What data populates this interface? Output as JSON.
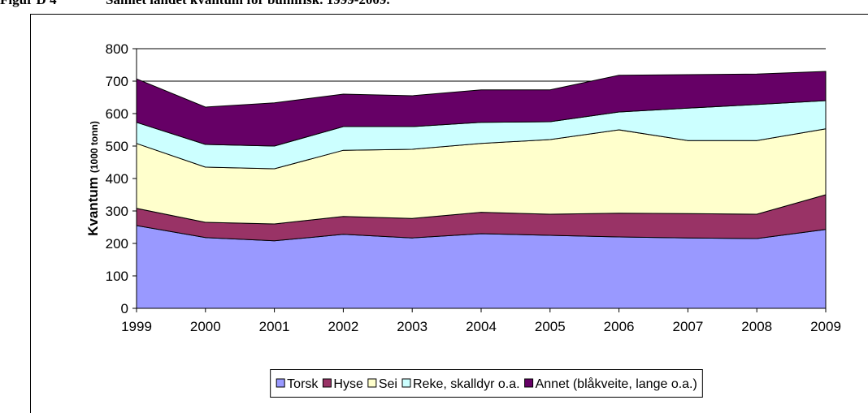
{
  "figure_label": "Figur D 4",
  "chart_data": {
    "type": "stacked_area",
    "title": "Samlet landet kvantum for bunnfisk. 1999-2009.",
    "y_label": "Kvantum",
    "y_label_unit": "(1000 tonn)",
    "categories": [
      "1999",
      "2000",
      "2001",
      "2002",
      "2003",
      "2004",
      "2005",
      "2006",
      "2007",
      "2008",
      "2009"
    ],
    "series": [
      {
        "name": "Torsk",
        "color": "#9999ff",
        "values": [
          255,
          218,
          208,
          228,
          217,
          230,
          225,
          220,
          217,
          215,
          243
        ]
      },
      {
        "name": "Hyse",
        "color": "#993366",
        "values": [
          53,
          47,
          52,
          55,
          60,
          66,
          65,
          73,
          75,
          75,
          107
        ]
      },
      {
        "name": "Sei",
        "color": "#ffffcc",
        "values": [
          200,
          170,
          170,
          204,
          213,
          212,
          230,
          257,
          225,
          227,
          203
        ]
      },
      {
        "name": "Reke, skalldyr o.a.",
        "color": "#ccffff",
        "values": [
          65,
          70,
          70,
          73,
          70,
          65,
          55,
          55,
          100,
          111,
          87
        ]
      },
      {
        "name": "Annet (blåkveite, lange o.a.)",
        "color": "#660066",
        "values": [
          134,
          115,
          133,
          100,
          95,
          100,
          98,
          113,
          103,
          94,
          90
        ]
      }
    ],
    "ylim": [
      0,
      800
    ],
    "yticks": [
      0,
      100,
      200,
      300,
      400,
      500,
      600,
      700,
      800
    ],
    "grid": true,
    "legend": "bottom"
  }
}
